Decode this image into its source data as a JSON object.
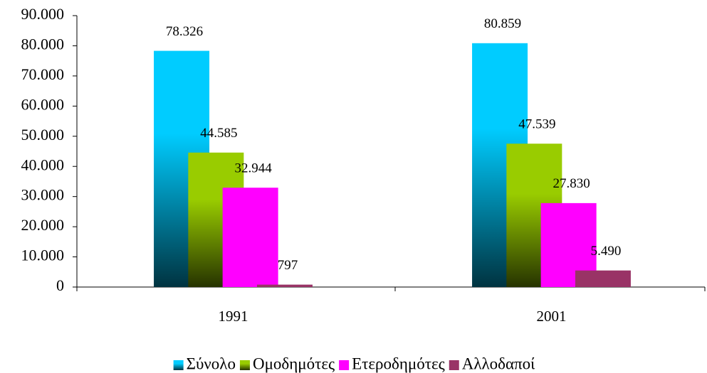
{
  "chart_data": {
    "type": "bar",
    "categories": [
      "1991",
      "2001"
    ],
    "series": [
      {
        "name": "Σύνολο",
        "color": "#00ccff",
        "values": [
          78326,
          80859
        ],
        "value_labels": [
          "78.326",
          "80.859"
        ]
      },
      {
        "name": "Ομοδημότες",
        "color": "#99cc00",
        "values": [
          44585,
          47539
        ],
        "value_labels": [
          "44.585",
          "47.539"
        ]
      },
      {
        "name": "Ετεροδημότες",
        "color": "#ff00ff",
        "values": [
          32944,
          27830
        ],
        "value_labels": [
          "32.944",
          "27.830"
        ]
      },
      {
        "name": "Αλλοδαποί",
        "color": "#993366",
        "values": [
          797,
          5490
        ],
        "value_labels": [
          "797",
          "5.490"
        ]
      }
    ],
    "ylim": [
      0,
      90000
    ],
    "yticks": [
      0,
      {
        "value": 10000,
        "label": "10.000"
      },
      {
        "value": 20000,
        "label": "20.000"
      },
      {
        "value": 30000,
        "label": "30.000"
      },
      {
        "value": 40000,
        "label": "40.000"
      },
      {
        "value": 50000,
        "label": "50.000"
      },
      {
        "value": 60000,
        "label": "60.000"
      },
      {
        "value": 70000,
        "label": "70.000"
      },
      {
        "value": 80000,
        "label": "80.000"
      },
      {
        "value": 90000,
        "label": "90.000"
      }
    ],
    "legend": "bottom"
  }
}
